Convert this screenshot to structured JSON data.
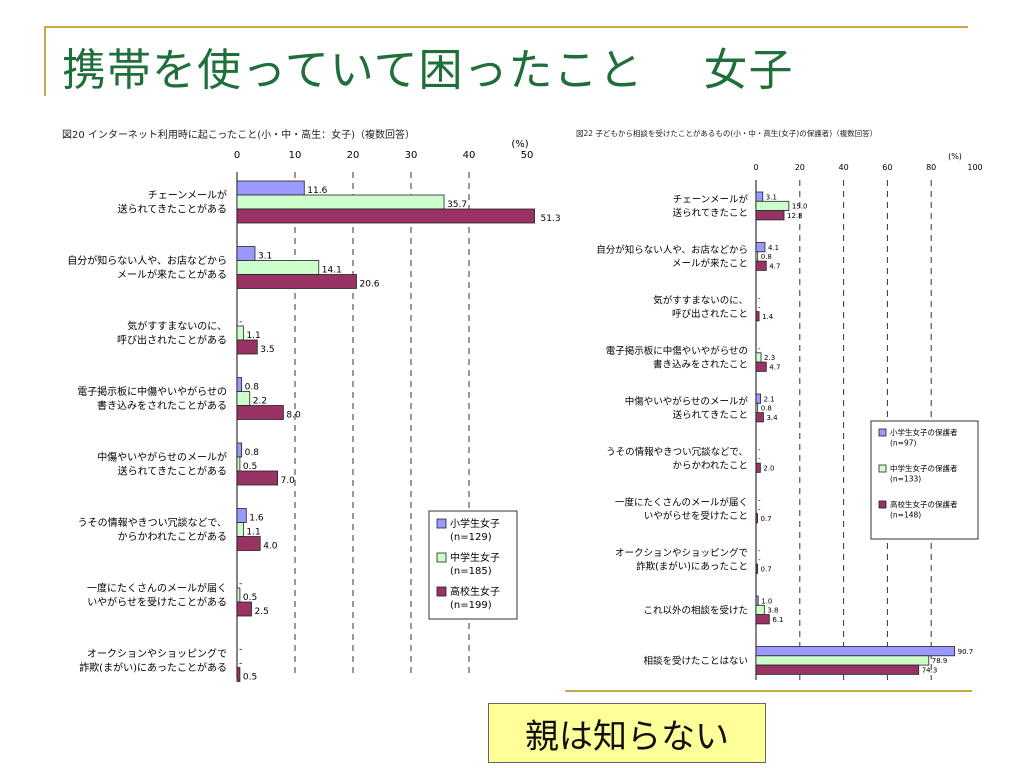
{
  "slide": {
    "title": "携帯を使っていて困ったこと　 女子",
    "callout": "親は知らない"
  },
  "chart_data": [
    {
      "type": "bar",
      "orientation": "horizontal",
      "title": "図20 インターネット利用時に起こったこと(小・中・高生：女子)（複数回答）",
      "unit": "(%)",
      "xlim": [
        0,
        50
      ],
      "ticks": [
        0,
        10,
        20,
        30,
        40,
        50
      ],
      "categories": [
        [
          "チェーンメールが",
          "送られてきたことがある"
        ],
        [
          "自分が知らない人や、お店などから",
          "メールが来たことがある"
        ],
        [
          "気がすすまないのに、",
          "呼び出されたことがある"
        ],
        [
          "電子掲示板に中傷やいやがらせの",
          "書き込みをされたことがある"
        ],
        [
          "中傷やいやがらせのメールが",
          "送られてきたことがある"
        ],
        [
          "うその情報やきつい冗談などで、",
          "からかわれたことがある"
        ],
        [
          "一度にたくさんのメールが届く",
          "いやがらせを受けたことがある"
        ],
        [
          "オークションやショッピングで",
          "詐欺(まがい)にあったことがある"
        ]
      ],
      "series": [
        {
          "name": "小学生女子",
          "n": "(n=129)",
          "color": "#9999ff",
          "values": [
            11.6,
            3.1,
            null,
            0.8,
            0.8,
            1.6,
            null,
            null
          ]
        },
        {
          "name": "中学生女子",
          "n": "(n=185)",
          "color": "#ccffcc",
          "values": [
            35.7,
            14.1,
            1.1,
            2.2,
            0.5,
            1.1,
            0.5,
            null
          ]
        },
        {
          "name": "高校生女子",
          "n": "(n=199)",
          "color": "#993366",
          "values": [
            51.3,
            20.6,
            3.5,
            8.0,
            7.0,
            4.0,
            2.5,
            0.5
          ]
        }
      ],
      "legend_position": "bottom-right",
      "grid": "dashed-vertical"
    },
    {
      "type": "bar",
      "orientation": "horizontal",
      "title": "図22 子どもから相談を受けたことがあるもの(小・中・高生(女子)の保護者)（複数回答）",
      "unit": "(%)",
      "xlim": [
        0,
        100
      ],
      "ticks": [
        0,
        20,
        40,
        60,
        80,
        100
      ],
      "categories": [
        [
          "チェーンメールが",
          "送られてきたこと"
        ],
        [
          "自分が知らない人や、お店などから",
          "メールが来たこと"
        ],
        [
          "気がすすまないのに、",
          "呼び出されたこと"
        ],
        [
          "電子掲示板に中傷やいやがらせの",
          "書き込みをされたこと"
        ],
        [
          "中傷やいやがらせのメールが",
          "送られてきたこと"
        ],
        [
          "うその情報やきつい冗談などで、",
          "からかわれたこと"
        ],
        [
          "一度にたくさんのメールが届く",
          "いやがらせを受けたこと"
        ],
        [
          "オークションやショッピングで",
          "詐欺(まがい)にあったこと"
        ],
        [
          "これ以外の相談を受けた"
        ],
        [
          "相談を受けたことはない"
        ]
      ],
      "series": [
        {
          "name": "小学生女子の保護者",
          "n": "(n=97)",
          "color": "#9999ff",
          "values": [
            3.1,
            4.1,
            null,
            null,
            2.1,
            null,
            null,
            null,
            1.0,
            90.7
          ]
        },
        {
          "name": "中学生女子の保護者",
          "n": "(n=133)",
          "color": "#ccffcc",
          "values": [
            15.0,
            0.8,
            null,
            2.3,
            0.8,
            null,
            null,
            null,
            3.8,
            78.9
          ]
        },
        {
          "name": "高校生女子の保護者",
          "n": "(n=148)",
          "color": "#993366",
          "values": [
            12.8,
            4.7,
            1.4,
            4.7,
            3.4,
            2.0,
            0.7,
            0.7,
            6.1,
            74.3
          ]
        }
      ],
      "legend_position": "right",
      "grid": "dashed-vertical"
    }
  ]
}
